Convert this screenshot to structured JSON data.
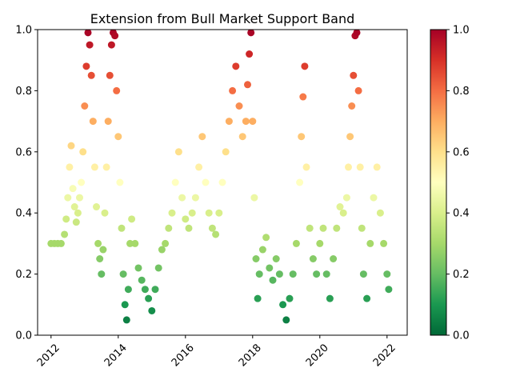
{
  "chart_data": {
    "type": "scatter",
    "title": "Extension from Bull Market Support Band",
    "xlabel": "",
    "ylabel": "",
    "xlim": [
      2011.6,
      2022.6
    ],
    "ylim": [
      0.0,
      1.0
    ],
    "x_ticks": [
      2012,
      2014,
      2016,
      2018,
      2020,
      2022
    ],
    "x_tick_labels": [
      "2012",
      "2014",
      "2016",
      "2018",
      "2020",
      "2022"
    ],
    "y_ticks": [
      0.0,
      0.2,
      0.4,
      0.6,
      0.8,
      1.0
    ],
    "y_tick_labels": [
      "0.0",
      "0.2",
      "0.4",
      "0.6",
      "0.8",
      "1.0"
    ],
    "grid": false,
    "colormap": "RdYlGn_r",
    "colormap_stops": [
      "#006837",
      "#1a9850",
      "#66bd63",
      "#a6d96a",
      "#d9ef8b",
      "#ffffbf",
      "#fee08b",
      "#fdae61",
      "#f46d43",
      "#d73027",
      "#a50026"
    ],
    "colorbar": {
      "range": [
        0.0,
        1.0
      ],
      "ticks": [
        0.0,
        0.2,
        0.4,
        0.6,
        0.8,
        1.0
      ],
      "tick_labels": [
        "0.0",
        "0.2",
        "0.4",
        "0.6",
        "0.8",
        "1.0"
      ]
    },
    "series": [
      {
        "x": [
          2012.0,
          2012.1,
          2012.2,
          2012.3,
          2012.4,
          2012.45,
          2012.5,
          2012.55,
          2012.6,
          2012.65,
          2012.7,
          2012.75,
          2012.8,
          2012.85,
          2012.9,
          2012.95,
          2013.0,
          2013.05,
          2013.1,
          2013.15,
          2013.2,
          2013.25,
          2013.3,
          2013.35,
          2013.4,
          2013.45,
          2013.5,
          2013.55,
          2013.6,
          2013.65,
          2013.7,
          2013.75,
          2013.8,
          2013.85,
          2013.9,
          2013.95,
          2014.0,
          2014.05,
          2014.1,
          2014.15,
          2014.2,
          2014.25,
          2014.3,
          2014.35,
          2014.4,
          2014.5,
          2014.6,
          2014.7,
          2014.8,
          2014.9,
          2015.0,
          2015.1,
          2015.2,
          2015.3,
          2015.4,
          2015.5,
          2015.6,
          2015.7,
          2015.8,
          2015.9,
          2016.0,
          2016.1,
          2016.2,
          2016.3,
          2016.4,
          2016.5,
          2016.6,
          2016.7,
          2016.8,
          2016.9,
          2017.0,
          2017.1,
          2017.2,
          2017.3,
          2017.4,
          2017.5,
          2017.6,
          2017.7,
          2017.8,
          2017.85,
          2017.9,
          2017.95,
          2018.0,
          2018.05,
          2018.1,
          2018.15,
          2018.2,
          2018.3,
          2018.4,
          2018.5,
          2018.6,
          2018.7,
          2018.8,
          2018.9,
          2019.0,
          2019.1,
          2019.2,
          2019.3,
          2019.4,
          2019.45,
          2019.5,
          2019.55,
          2019.6,
          2019.7,
          2019.8,
          2019.9,
          2020.0,
          2020.1,
          2020.2,
          2020.3,
          2020.4,
          2020.5,
          2020.6,
          2020.7,
          2020.8,
          2020.85,
          2020.9,
          2020.95,
          2021.0,
          2021.05,
          2021.1,
          2021.15,
          2021.2,
          2021.25,
          2021.3,
          2021.4,
          2021.5,
          2021.6,
          2021.7,
          2021.8,
          2021.9,
          2022.0,
          2022.05
        ],
        "y": [
          0.3,
          0.3,
          0.3,
          0.3,
          0.33,
          0.38,
          0.45,
          0.55,
          0.62,
          0.48,
          0.42,
          0.37,
          0.4,
          0.45,
          0.5,
          0.6,
          0.75,
          0.88,
          0.99,
          0.95,
          0.85,
          0.7,
          0.55,
          0.42,
          0.3,
          0.25,
          0.2,
          0.28,
          0.4,
          0.55,
          0.7,
          0.85,
          0.95,
          0.99,
          0.98,
          0.8,
          0.65,
          0.5,
          0.35,
          0.2,
          0.1,
          0.05,
          0.15,
          0.3,
          0.38,
          0.3,
          0.22,
          0.18,
          0.15,
          0.12,
          0.08,
          0.15,
          0.22,
          0.28,
          0.3,
          0.35,
          0.4,
          0.5,
          0.6,
          0.45,
          0.38,
          0.35,
          0.4,
          0.45,
          0.55,
          0.65,
          0.5,
          0.4,
          0.35,
          0.33,
          0.4,
          0.5,
          0.6,
          0.7,
          0.8,
          0.88,
          0.75,
          0.65,
          0.7,
          0.82,
          0.92,
          0.99,
          0.7,
          0.45,
          0.25,
          0.12,
          0.2,
          0.28,
          0.32,
          0.22,
          0.18,
          0.25,
          0.2,
          0.1,
          0.05,
          0.12,
          0.2,
          0.3,
          0.5,
          0.65,
          0.78,
          0.88,
          0.55,
          0.35,
          0.25,
          0.2,
          0.3,
          0.35,
          0.2,
          0.12,
          0.25,
          0.35,
          0.42,
          0.4,
          0.45,
          0.55,
          0.65,
          0.75,
          0.85,
          0.98,
          0.99,
          0.8,
          0.55,
          0.35,
          0.2,
          0.12,
          0.3,
          0.45,
          0.55,
          0.4,
          0.3,
          0.2,
          0.15
        ]
      }
    ]
  }
}
